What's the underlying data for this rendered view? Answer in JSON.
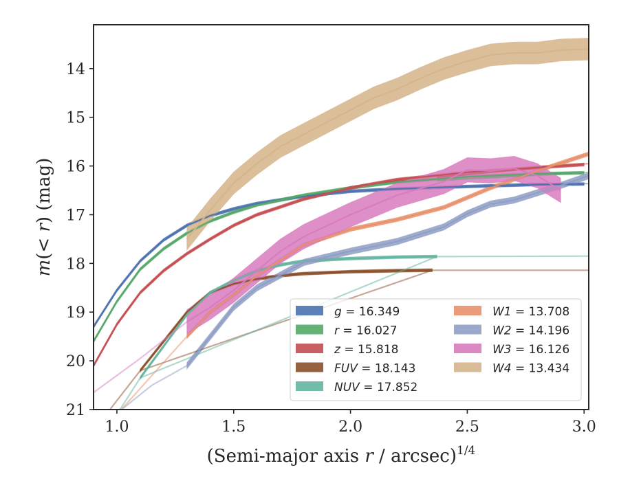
{
  "chart_data": {
    "type": "line",
    "title": "",
    "xlabel": "(Semi-major axis r / arcsec)^1/4",
    "xlabel_main": "(Semi-major axis ",
    "xlabel_var": "r",
    "xlabel_tail": " / arcsec)",
    "xlabel_exp": "1/4",
    "ylabel": "m(<r) (mag)",
    "ylabel_m": "m",
    "ylabel_paren_open": "(",
    "ylabel_op": "< r",
    "ylabel_rest": ") (mag)",
    "xlim": [
      0.9,
      3.02
    ],
    "ylim": [
      21,
      13.1
    ],
    "y_inverted": true,
    "xticks": [
      1.0,
      1.5,
      2.0,
      2.5,
      3.0
    ],
    "xtick_labels": [
      "1.0",
      "1.5",
      "2.0",
      "2.5",
      "3.0"
    ],
    "yticks": [
      14,
      15,
      16,
      17,
      18,
      19,
      20,
      21
    ],
    "ytick_labels": [
      "14",
      "15",
      "16",
      "17",
      "18",
      "19",
      "20",
      "21"
    ],
    "grid": false,
    "legend_position": "lower-right",
    "legend_columns": 2,
    "series": [
      {
        "key": "g",
        "name": "g = 16.349",
        "label_var": "g",
        "label_val": " = 16.349",
        "color": "#4c72b0",
        "band_width": 0.06,
        "x": [
          0.9,
          1.0,
          1.1,
          1.2,
          1.3,
          1.4,
          1.5,
          1.6,
          1.8,
          2.0,
          2.2,
          2.5,
          2.8,
          3.0
        ],
        "y": [
          19.3,
          18.55,
          17.95,
          17.52,
          17.22,
          17.02,
          16.88,
          16.77,
          16.62,
          16.52,
          16.47,
          16.42,
          16.38,
          16.37
        ],
        "xt": [
          2.37,
          3.02
        ],
        "yt": [
          16.44,
          16.36
        ]
      },
      {
        "key": "r",
        "name": "r = 16.027",
        "label_var": "r",
        "label_val": " = 16.027",
        "color": "#55a868",
        "band_width": 0.06,
        "x": [
          0.9,
          1.0,
          1.1,
          1.2,
          1.3,
          1.4,
          1.5,
          1.6,
          1.8,
          2.0,
          2.2,
          2.5,
          2.8,
          3.0
        ],
        "y": [
          19.6,
          18.78,
          18.12,
          17.7,
          17.38,
          17.13,
          16.95,
          16.8,
          16.6,
          16.45,
          16.33,
          16.22,
          16.16,
          16.14
        ],
        "xt": [
          2.37,
          3.02
        ],
        "yt": [
          16.3,
          16.13
        ]
      },
      {
        "key": "z",
        "name": "z = 15.818",
        "label_var": "z",
        "label_val": " = 15.818",
        "color": "#c44e52",
        "band_width": 0.06,
        "x": [
          0.9,
          1.0,
          1.1,
          1.2,
          1.3,
          1.4,
          1.5,
          1.6,
          1.8,
          2.0,
          2.2,
          2.5,
          2.8,
          3.0
        ],
        "y": [
          20.1,
          19.25,
          18.6,
          18.15,
          17.8,
          17.5,
          17.22,
          17.0,
          16.68,
          16.45,
          16.28,
          16.13,
          16.03,
          15.97
        ],
        "xt": [
          2.37,
          3.02
        ],
        "yt": [
          16.23,
          15.95
        ]
      },
      {
        "key": "FUV",
        "name": "FUV = 18.143",
        "label_var": "FUV",
        "label_val": " = 18.143",
        "color": "#8c4f2b",
        "band_width": 0.06,
        "x": [
          1.1,
          1.2,
          1.3,
          1.4,
          1.5,
          1.6,
          1.7,
          1.8,
          2.0,
          2.2,
          2.35
        ],
        "y": [
          20.2,
          19.6,
          19.0,
          18.6,
          18.42,
          18.32,
          18.25,
          18.21,
          18.17,
          18.15,
          18.14
        ],
        "xt": [
          0.97,
          1.1,
          2.35,
          3.02
        ],
        "yt": [
          21.0,
          20.2,
          18.14,
          18.14
        ]
      },
      {
        "key": "NUV",
        "name": "NUV = 17.852",
        "label_var": "NUV",
        "label_val": " = 17.852",
        "color": "#64b5a0",
        "band_width": 0.06,
        "x": [
          1.1,
          1.2,
          1.3,
          1.4,
          1.5,
          1.6,
          1.7,
          1.8,
          2.0,
          2.2,
          2.37
        ],
        "y": [
          20.35,
          19.7,
          19.05,
          18.6,
          18.35,
          18.15,
          18.03,
          17.95,
          17.9,
          17.87,
          17.86
        ],
        "xt": [
          1.0,
          1.1,
          2.37,
          3.02
        ],
        "yt": [
          21.1,
          20.35,
          17.86,
          17.85
        ]
      },
      {
        "key": "W1",
        "name": "W1 = 13.708",
        "label_var": "W1",
        "label_val": " = 13.708",
        "color": "#e8906a",
        "band_width": 0.08,
        "x": [
          1.3,
          1.4,
          1.5,
          1.6,
          1.8,
          2.0,
          2.2,
          2.4,
          2.6,
          2.8,
          3.02
        ],
        "y": [
          19.5,
          19.0,
          18.65,
          18.25,
          17.62,
          17.3,
          17.1,
          16.85,
          16.45,
          16.1,
          15.75
        ],
        "xt": [
          1.0,
          1.15,
          1.3
        ],
        "yt": [
          21.1,
          20.3,
          19.5
        ]
      },
      {
        "key": "W2",
        "name": "W2 = 14.196",
        "label_var": "W2",
        "label_val": " = 14.196",
        "color": "#8f9ec4",
        "band_width": 0.13,
        "x": [
          1.3,
          1.4,
          1.5,
          1.6,
          1.8,
          2.0,
          2.2,
          2.4,
          2.5,
          2.6,
          2.7,
          2.8,
          2.9,
          3.02
        ],
        "y": [
          20.1,
          19.5,
          18.9,
          18.5,
          17.98,
          17.75,
          17.55,
          17.25,
          16.98,
          16.78,
          16.7,
          16.55,
          16.4,
          16.2
        ],
        "xt": [
          1.02,
          1.15,
          1.3
        ],
        "yt": [
          21.0,
          20.5,
          20.1
        ]
      },
      {
        "key": "W3",
        "name": "W3 = 16.126",
        "label_var": "W3",
        "label_val": " = 16.126",
        "color": "#d87bbd",
        "band_width": 0.5,
        "x": [
          1.3,
          1.4,
          1.5,
          1.6,
          1.7,
          1.8,
          2.0,
          2.2,
          2.4,
          2.5,
          2.6,
          2.7,
          2.8,
          2.9
        ],
        "y": [
          19.2,
          18.9,
          18.55,
          18.15,
          17.75,
          17.45,
          17.0,
          16.6,
          16.32,
          16.08,
          16.1,
          16.05,
          16.2,
          16.5
        ],
        "xt": [
          0.9,
          1.1,
          1.3
        ],
        "yt": [
          20.65,
          19.95,
          19.2
        ]
      },
      {
        "key": "W4",
        "name": "W4 = 13.434",
        "label_var": "W4",
        "label_val": " = 13.434",
        "color": "#d5b48a",
        "band_width": 0.45,
        "x": [
          1.3,
          1.4,
          1.5,
          1.6,
          1.7,
          1.8,
          1.9,
          2.0,
          2.1,
          2.2,
          2.3,
          2.4,
          2.5,
          2.6,
          2.7,
          2.8,
          2.9,
          3.02
        ],
        "y": [
          17.5,
          16.9,
          16.35,
          15.95,
          15.6,
          15.35,
          15.1,
          14.85,
          14.6,
          14.42,
          14.2,
          14.0,
          13.85,
          13.72,
          13.68,
          13.68,
          13.62,
          13.6
        ],
        "xt": [],
        "yt": []
      }
    ]
  }
}
